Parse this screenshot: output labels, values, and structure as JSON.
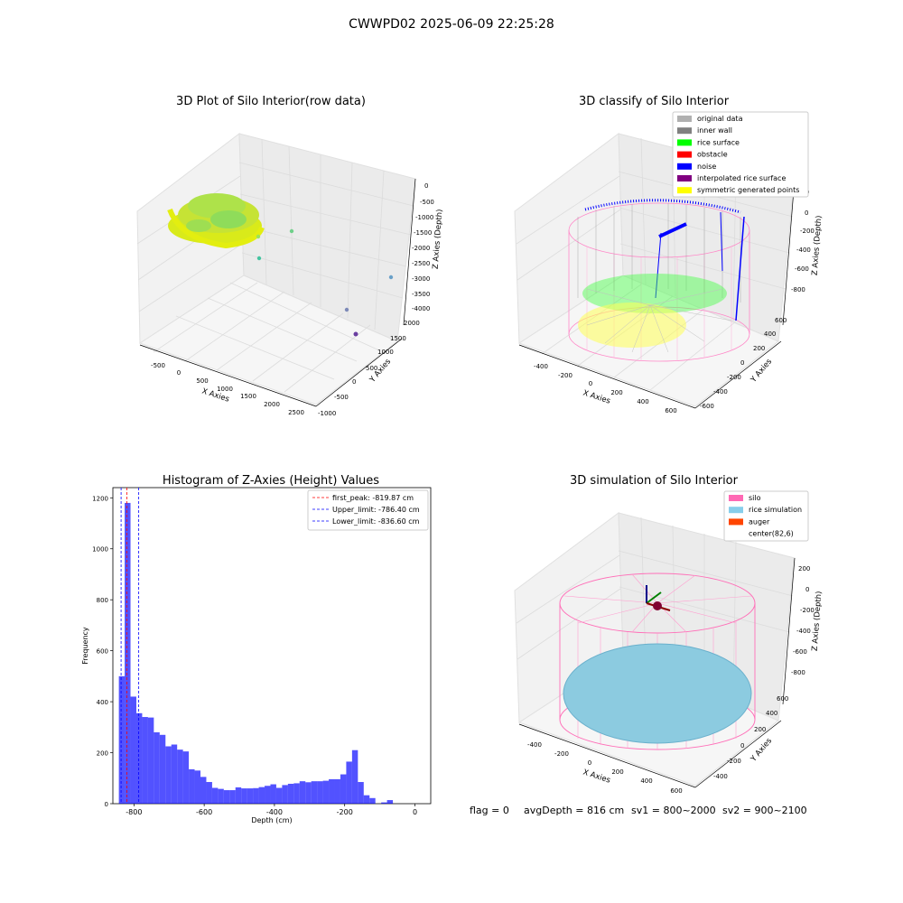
{
  "suptitle": "CWWPD02 2025-06-09 22:25:28",
  "panels": {
    "raw": {
      "title": "3D Plot of Silo Interior(row data)",
      "xlabel": "X Axies",
      "ylabel": "Y Axies",
      "zlabel": "Z Axies (Depth)",
      "xticks": [
        "-500",
        "0",
        "500",
        "1000",
        "1500",
        "2000",
        "2500"
      ],
      "yticks": [
        "-1000",
        "-500",
        "0",
        "500",
        "1000",
        "1500",
        "2000"
      ],
      "zticks": [
        "0",
        "-500",
        "-1000",
        "-1500",
        "-2000",
        "-2500",
        "-3000",
        "-3500",
        "-4000"
      ]
    },
    "classify": {
      "title": "3D classify of Silo Interior",
      "xlabel": "X Axies",
      "ylabel": "Y Axies",
      "zlabel": "Z Axies (Depth)",
      "xticks": [
        "-400",
        "-200",
        "0",
        "200",
        "400",
        "600"
      ],
      "yticks": [
        "-600",
        "-400",
        "-200",
        "0",
        "200",
        "400",
        "600"
      ],
      "zticks": [
        "200",
        "0",
        "-200",
        "-400",
        "-600",
        "-800"
      ],
      "legend": [
        {
          "label": "original data",
          "color": "#b0b0b0"
        },
        {
          "label": "inner wall",
          "color": "#808080"
        },
        {
          "label": "rice surface",
          "color": "#00ff00"
        },
        {
          "label": "obstacle",
          "color": "#ff0000"
        },
        {
          "label": "noise",
          "color": "#0000ff"
        },
        {
          "label": "interpolated rice surface",
          "color": "#800080"
        },
        {
          "label": "symmetric generated points",
          "color": "#ffff00"
        }
      ]
    },
    "simulation": {
      "title": "3D simulation of Silo Interior",
      "xlabel": "X Axies",
      "ylabel": "Y Axies",
      "zlabel": "Z Axies (Depth)",
      "xticks": [
        "-400",
        "-200",
        "0",
        "200",
        "400",
        "600"
      ],
      "yticks": [
        "-400",
        "-200",
        "0",
        "200",
        "400",
        "600"
      ],
      "zticks": [
        "200",
        "0",
        "-200",
        "-400",
        "-600",
        "-800"
      ],
      "legend": [
        {
          "label": "silo",
          "color": "#ff69b4"
        },
        {
          "label": "rice simulation",
          "color": "#87ceeb"
        },
        {
          "label": "auger",
          "color": "#ff4500"
        },
        {
          "label": "center(82,6)",
          "color": ""
        }
      ]
    }
  },
  "footer": {
    "flag": "flag = 0",
    "avg": "avgDepth = 816 cm",
    "sv1": "sv1 = 800~2000",
    "sv2": "sv2 = 900~2100"
  },
  "chart_data": [
    {
      "type": "bar",
      "title": "Histogram of Z-Axies (Height) Values",
      "xlabel": "Depth (cm)",
      "ylabel": "Frequency",
      "xlim": [
        -860,
        45
      ],
      "ylim": [
        0,
        1240
      ],
      "bar_color": "#0000ff",
      "bin_edges_start": -843,
      "bin_width": 16.6,
      "values": [
        500,
        1180,
        420,
        355,
        340,
        338,
        280,
        270,
        225,
        232,
        212,
        205,
        135,
        130,
        105,
        85,
        62,
        58,
        53,
        53,
        64,
        60,
        60,
        61,
        65,
        70,
        76,
        62,
        73,
        78,
        80,
        88,
        84,
        88,
        88,
        90,
        96,
        96,
        115,
        165,
        210,
        85,
        33,
        22,
        0,
        5,
        14
      ],
      "xticks": [
        -800,
        -600,
        -400,
        -200,
        0
      ],
      "yticks": [
        0,
        200,
        400,
        600,
        800,
        1000,
        1200
      ],
      "vlines": [
        {
          "label": "first_peak: -819.87 cm",
          "x": -819.87,
          "color": "#ff0000"
        },
        {
          "label": "Upper_limit: -786.40 cm",
          "x": -786.4,
          "color": "#0000ff"
        },
        {
          "label": "Lower_limit: -836.60 cm",
          "x": -836.6,
          "color": "#0000ff"
        }
      ]
    }
  ]
}
